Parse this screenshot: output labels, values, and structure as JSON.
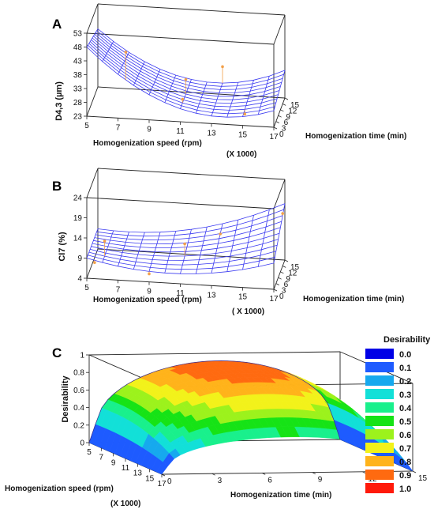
{
  "colors": {
    "mesh": "#3a3af0",
    "points": "#f2a04a",
    "frame": "#222222",
    "legend": [
      "#0000e6",
      "#1e5bff",
      "#16a9ee",
      "#12e0d8",
      "#19f08c",
      "#16e316",
      "#9cf21c",
      "#f2f21a",
      "#ffb31a",
      "#ff6a10",
      "#ff1a0a"
    ]
  },
  "chart_data": [
    {
      "type": "surface",
      "panel": "A",
      "ylabel": "D4,3 (µm)",
      "xlabel": "Homogenization speed (rpm)",
      "xlabel_unit": "(X 1000)",
      "zlabel": "Homogenization time (min)",
      "x_ticks": [
        "5",
        "7",
        "9",
        "11",
        "13",
        "15",
        "17"
      ],
      "z_ticks": [
        "0",
        "3",
        "6",
        "9",
        "12",
        "15"
      ],
      "y_ticks": [
        "23",
        "28",
        "33",
        "38",
        "43",
        "48",
        "53"
      ],
      "ylim": [
        23,
        53
      ],
      "grid": false,
      "surface": {
        "speed": [
          5,
          17
        ],
        "time": [
          0,
          15
        ],
        "corners": {
          "speed5_time0": 48,
          "speed17_time0": 29,
          "speed5_time15": 44,
          "speed17_time15": 33
        },
        "min_value": 26.5
      },
      "points": [
        {
          "speed": 7.5,
          "time": 0,
          "value": 47
        },
        {
          "speed": 11,
          "time": 3,
          "value": 29
        },
        {
          "speed": 11,
          "time": 7.5,
          "value": 33
        },
        {
          "speed": 15,
          "time": 3,
          "value": 25
        },
        {
          "speed": 13,
          "time": 15,
          "value": 33
        }
      ]
    },
    {
      "type": "surface",
      "panel": "B",
      "ylabel": "CI7 (%)",
      "xlabel": "Homogenization speed (rpm)",
      "xlabel_unit": "( X 1000)",
      "zlabel": "Homogenization time (min)",
      "x_ticks": [
        "5",
        "7",
        "9",
        "11",
        "13",
        "15",
        "17"
      ],
      "z_ticks": [
        "0",
        "3",
        "6",
        "9",
        "12",
        "15"
      ],
      "y_ticks": [
        "4",
        "9",
        "14",
        "19",
        "24"
      ],
      "ylim": [
        4,
        24
      ],
      "grid": false,
      "surface": {
        "speed": [
          5,
          17
        ],
        "time": [
          0,
          15
        ],
        "corners": {
          "speed5_time0": 9,
          "speed17_time0": 10.5,
          "speed5_time15": 9,
          "speed17_time15": 18
        },
        "min_value": 8
      },
      "points": [
        {
          "speed": 6,
          "time": 3,
          "value": 12
        },
        {
          "speed": 5.5,
          "time": 0,
          "value": 8
        },
        {
          "speed": 9,
          "time": 0,
          "value": 6
        },
        {
          "speed": 11,
          "time": 6,
          "value": 11
        },
        {
          "speed": 13,
          "time": 12,
          "value": 11
        },
        {
          "speed": 17,
          "time": 12,
          "value": 17
        }
      ]
    },
    {
      "type": "surface",
      "panel": "C",
      "ylabel": "Desirability",
      "xlabel": "Homogenization speed (rpm)",
      "xlabel_unit": "(X 1000)",
      "zlabel": "Homogenization time (min)",
      "x_ticks": [
        "5",
        "7",
        "9",
        "11",
        "13",
        "15",
        "17"
      ],
      "z_ticks": [
        "0",
        "3",
        "6",
        "9",
        "12",
        "15"
      ],
      "y_ticks": [
        "0",
        "0.2",
        "0.4",
        "0.6",
        "0.8",
        "1"
      ],
      "ylim": [
        0,
        1
      ],
      "grid": false,
      "surface": {
        "speed": [
          5,
          17
        ],
        "time": [
          0,
          15
        ],
        "description_values": {
          "peak_time_low": 0.9,
          "peak_time_high": 0.95,
          "edges": 0
        }
      },
      "legend": {
        "title": "Desirability",
        "placement": "right",
        "entries": [
          "0.0",
          "0.1",
          "0.2",
          "0.3",
          "0.4",
          "0.5",
          "0.6",
          "0.7",
          "0.8",
          "0.9",
          "1.0"
        ]
      }
    }
  ]
}
